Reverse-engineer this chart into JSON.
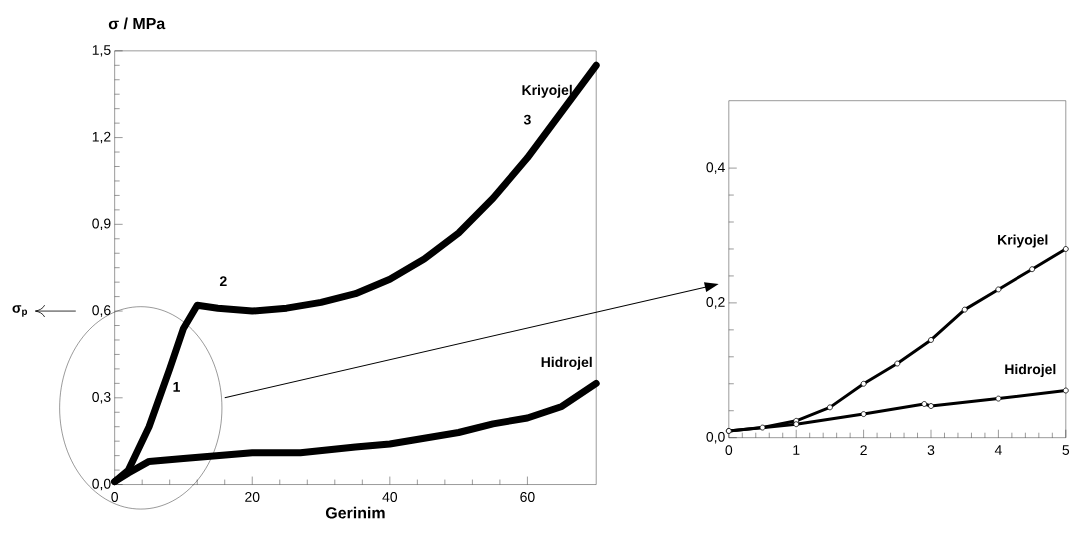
{
  "chart_data": [
    {
      "type": "line",
      "xlabel": "Gerinim",
      "ylabel": "σ / MPa",
      "xlim": [
        0,
        70
      ],
      "xticks": [
        0,
        20,
        40,
        60
      ],
      "ylim": [
        0,
        1.5
      ],
      "yticks": [
        {
          "value": 0,
          "label": "0,0"
        },
        {
          "value": 0.3,
          "label": "0,3"
        },
        {
          "value": 0.6,
          "label": "0,6"
        },
        {
          "value": 0.9,
          "label": "0,9"
        },
        {
          "value": 1.2,
          "label": "1,2"
        },
        {
          "value": 1.5,
          "label": "1,5"
        }
      ],
      "series": [
        {
          "name": "Kriyojel",
          "color": "#000000",
          "x": [
            0,
            2,
            5,
            8,
            10,
            12,
            15,
            20,
            25,
            30,
            35,
            40,
            45,
            50,
            55,
            60,
            65,
            70
          ],
          "values": [
            0.01,
            0.05,
            0.2,
            0.4,
            0.54,
            0.62,
            0.61,
            0.6,
            0.61,
            0.63,
            0.66,
            0.71,
            0.78,
            0.87,
            0.99,
            1.13,
            1.29,
            1.45
          ]
        },
        {
          "name": "Hidrojel",
          "color": "#000000",
          "x": [
            0,
            2,
            5,
            10,
            20,
            27,
            35,
            40,
            45,
            50,
            55,
            60,
            65,
            70
          ],
          "values": [
            0.01,
            0.04,
            0.08,
            0.09,
            0.11,
            0.11,
            0.13,
            0.14,
            0.16,
            0.18,
            0.21,
            0.23,
            0.27,
            0.35
          ]
        }
      ],
      "annotations": [
        "1",
        "2",
        "3",
        "σ$_{p}$"
      ]
    },
    {
      "type": "line",
      "marker": "circle",
      "xlim": [
        0,
        5
      ],
      "xticks": [
        0,
        1,
        2,
        3,
        4,
        5
      ],
      "ylim": [
        0,
        0.5
      ],
      "yticks": [
        {
          "value": 0,
          "label": "0,0"
        },
        {
          "value": 0.2,
          "label": "0,2"
        },
        {
          "value": 0.4,
          "label": "0,4"
        }
      ],
      "series": [
        {
          "name": "Kriyojel",
          "color": "#000000",
          "x": [
            0,
            0.5,
            1,
            1.5,
            2,
            2.5,
            3,
            3.5,
            4,
            4.5,
            5
          ],
          "values": [
            0.01,
            0.015,
            0.025,
            0.045,
            0.08,
            0.11,
            0.145,
            0.19,
            0.22,
            0.25,
            0.28
          ]
        },
        {
          "name": "Hidrojel",
          "color": "#000000",
          "x": [
            0,
            1,
            2,
            2.9,
            3,
            4,
            5
          ],
          "values": [
            0.01,
            0.02,
            0.035,
            0.05,
            0.047,
            0.058,
            0.07
          ]
        }
      ]
    }
  ]
}
